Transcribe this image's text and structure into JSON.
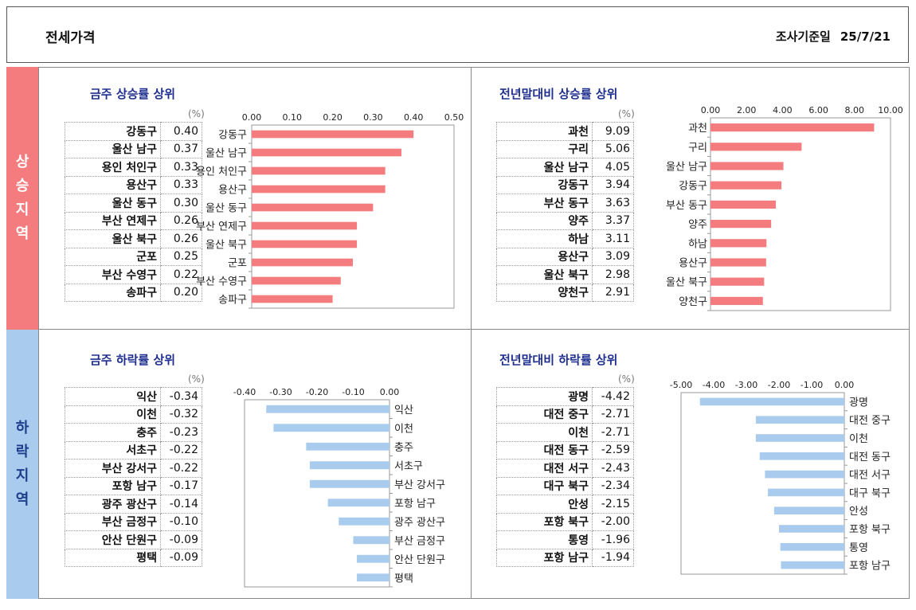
{
  "header": {
    "title": "전세가격",
    "date_label": "조사기준일",
    "date": "25/7/21"
  },
  "side": {
    "up_label": [
      "상",
      "승",
      "지",
      "역"
    ],
    "down_label": [
      "하",
      "락",
      "지",
      "역"
    ]
  },
  "panels": {
    "week_up": {
      "title": "금주 상승률 상위",
      "unit": "(%)",
      "rows": [
        {
          "name": "강동구",
          "value": "0.40"
        },
        {
          "name": "울산 남구",
          "value": "0.37"
        },
        {
          "name": "용인 처인구",
          "value": "0.33"
        },
        {
          "name": "용산구",
          "value": "0.33"
        },
        {
          "name": "울산 동구",
          "value": "0.30"
        },
        {
          "name": "부산 연제구",
          "value": "0.26"
        },
        {
          "name": "울산 북구",
          "value": "0.26"
        },
        {
          "name": "군포",
          "value": "0.25"
        },
        {
          "name": "부산 수영구",
          "value": "0.22"
        },
        {
          "name": "송파구",
          "value": "0.20"
        }
      ]
    },
    "year_up": {
      "title": "전년말대비 상승률 상위",
      "unit": "(%)",
      "rows": [
        {
          "name": "과천",
          "value": "9.09"
        },
        {
          "name": "구리",
          "value": "5.06"
        },
        {
          "name": "울산 남구",
          "value": "4.05"
        },
        {
          "name": "강동구",
          "value": "3.94"
        },
        {
          "name": "부산 동구",
          "value": "3.63"
        },
        {
          "name": "양주",
          "value": "3.37"
        },
        {
          "name": "하남",
          "value": "3.11"
        },
        {
          "name": "용산구",
          "value": "3.09"
        },
        {
          "name": "울산 북구",
          "value": "2.98"
        },
        {
          "name": "양천구",
          "value": "2.91"
        }
      ]
    },
    "week_down": {
      "title": "금주 하락률 상위",
      "unit": "(%)",
      "rows": [
        {
          "name": "익산",
          "value": "-0.34"
        },
        {
          "name": "이천",
          "value": "-0.32"
        },
        {
          "name": "충주",
          "value": "-0.23"
        },
        {
          "name": "서초구",
          "value": "-0.22"
        },
        {
          "name": "부산 강서구",
          "value": "-0.22"
        },
        {
          "name": "포항 남구",
          "value": "-0.17"
        },
        {
          "name": "광주 광산구",
          "value": "-0.14"
        },
        {
          "name": "부산 금정구",
          "value": "-0.10"
        },
        {
          "name": "안산 단원구",
          "value": "-0.09"
        },
        {
          "name": "평택",
          "value": "-0.09"
        }
      ]
    },
    "year_down": {
      "title": "전년말대비 하락률 상위",
      "unit": "(%)",
      "rows": [
        {
          "name": "광명",
          "value": "-4.42"
        },
        {
          "name": "대전 중구",
          "value": "-2.71"
        },
        {
          "name": "이천",
          "value": "-2.71"
        },
        {
          "name": "대전 동구",
          "value": "-2.59"
        },
        {
          "name": "대전 서구",
          "value": "-2.43"
        },
        {
          "name": "대구 북구",
          "value": "-2.34"
        },
        {
          "name": "안성",
          "value": "-2.15"
        },
        {
          "name": "포항 북구",
          "value": "-2.00"
        },
        {
          "name": "통영",
          "value": "-1.96"
        },
        {
          "name": "포항 남구",
          "value": "-1.94"
        }
      ]
    }
  },
  "colors": {
    "up_bar": "#f47c7f",
    "down_bar": "#a8cbee",
    "title": "#1f2f8f"
  },
  "chart_data": [
    {
      "type": "bar",
      "orientation": "horizontal",
      "title": "금주 상승률 상위",
      "categories": [
        "강동구",
        "울산 남구",
        "용인 처인구",
        "용산구",
        "울산 동구",
        "부산 연제구",
        "울산 북구",
        "군포",
        "부산 수영구",
        "송파구"
      ],
      "values": [
        0.4,
        0.37,
        0.33,
        0.33,
        0.3,
        0.26,
        0.26,
        0.25,
        0.22,
        0.2
      ],
      "xlim": [
        0,
        0.5
      ],
      "ticks": [
        "0.00",
        "0.10",
        "0.20",
        "0.30",
        "0.40",
        "0.50"
      ],
      "axis_position": "top",
      "category_side": "left"
    },
    {
      "type": "bar",
      "orientation": "horizontal",
      "title": "전년말대비 상승률 상위",
      "categories": [
        "과천",
        "구리",
        "울산 남구",
        "강동구",
        "부산 동구",
        "양주",
        "하남",
        "용산구",
        "울산 북구",
        "양천구"
      ],
      "values": [
        9.09,
        5.06,
        4.05,
        3.94,
        3.63,
        3.37,
        3.11,
        3.09,
        2.98,
        2.91
      ],
      "xlim": [
        0,
        10
      ],
      "ticks": [
        "0.00",
        "2.00",
        "4.00",
        "6.00",
        "8.00",
        "10.00"
      ],
      "axis_position": "top",
      "category_side": "left"
    },
    {
      "type": "bar",
      "orientation": "horizontal",
      "title": "금주 하락률 상위",
      "categories": [
        "익산",
        "이천",
        "충주",
        "서초구",
        "부산 강서구",
        "포항 남구",
        "광주 광산구",
        "부산 금정구",
        "안산 단원구",
        "평택"
      ],
      "values": [
        -0.34,
        -0.32,
        -0.23,
        -0.22,
        -0.22,
        -0.17,
        -0.14,
        -0.1,
        -0.09,
        -0.09
      ],
      "xlim": [
        -0.4,
        0
      ],
      "ticks": [
        "-0.40",
        "-0.30",
        "-0.20",
        "-0.10",
        "0.00"
      ],
      "axis_position": "top",
      "category_side": "right"
    },
    {
      "type": "bar",
      "orientation": "horizontal",
      "title": "전년말대비 하락률 상위",
      "categories": [
        "광명",
        "대전 중구",
        "이천",
        "대전 동구",
        "대전 서구",
        "대구 북구",
        "안성",
        "포항 북구",
        "통영",
        "포항 남구"
      ],
      "values": [
        -4.42,
        -2.71,
        -2.71,
        -2.59,
        -2.43,
        -2.34,
        -2.15,
        -2.0,
        -1.96,
        -1.94
      ],
      "xlim": [
        -5,
        0
      ],
      "ticks": [
        "-5.00",
        "-4.00",
        "-3.00",
        "-2.00",
        "-1.00",
        "0.00"
      ],
      "axis_position": "top",
      "category_side": "right"
    }
  ]
}
